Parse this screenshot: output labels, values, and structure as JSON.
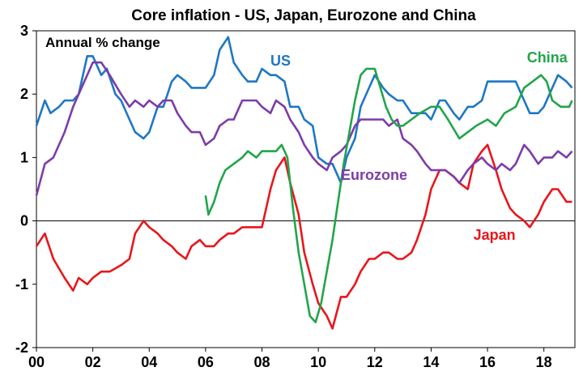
{
  "chart_data": {
    "type": "line",
    "title": "Core inflation - US, Japan, Eurozone and China",
    "annotation": "Annual % change",
    "xlabel": "",
    "ylabel": "",
    "xlim": [
      2000,
      2019.1
    ],
    "ylim": [
      -2,
      3
    ],
    "x_ticks": [
      2000,
      2002,
      2004,
      2006,
      2008,
      2010,
      2012,
      2014,
      2016,
      2018
    ],
    "x_tick_labels": [
      "00",
      "02",
      "04",
      "06",
      "08",
      "10",
      "12",
      "14",
      "16",
      "18"
    ],
    "y_ticks": [
      -2,
      -1,
      0,
      1,
      2,
      3
    ],
    "y_tick_labels": [
      "-2",
      "-1",
      "0",
      "1",
      "2",
      "3"
    ],
    "grid": false,
    "zero_line": true,
    "series": [
      {
        "name": "US",
        "color": "#1f77c4",
        "label": {
          "text": "US",
          "x": 2008.3,
          "y": 2.45
        },
        "points": [
          [
            2000,
            1.5
          ],
          [
            2000.3,
            1.9
          ],
          [
            2000.5,
            1.7
          ],
          [
            2000.8,
            1.8
          ],
          [
            2001,
            1.9
          ],
          [
            2001.3,
            1.9
          ],
          [
            2001.5,
            2.0
          ],
          [
            2001.8,
            2.6
          ],
          [
            2002,
            2.6
          ],
          [
            2002.3,
            2.3
          ],
          [
            2002.5,
            2.4
          ],
          [
            2002.8,
            2.0
          ],
          [
            2003,
            1.9
          ],
          [
            2003.3,
            1.6
          ],
          [
            2003.5,
            1.4
          ],
          [
            2003.8,
            1.3
          ],
          [
            2004,
            1.4
          ],
          [
            2004.3,
            1.8
          ],
          [
            2004.5,
            1.8
          ],
          [
            2004.8,
            2.2
          ],
          [
            2005,
            2.3
          ],
          [
            2005.3,
            2.2
          ],
          [
            2005.5,
            2.1
          ],
          [
            2005.8,
            2.1
          ],
          [
            2006,
            2.1
          ],
          [
            2006.3,
            2.3
          ],
          [
            2006.5,
            2.7
          ],
          [
            2006.8,
            2.9
          ],
          [
            2007,
            2.5
          ],
          [
            2007.3,
            2.3
          ],
          [
            2007.5,
            2.2
          ],
          [
            2007.8,
            2.2
          ],
          [
            2008,
            2.4
          ],
          [
            2008.3,
            2.3
          ],
          [
            2008.5,
            2.3
          ],
          [
            2008.8,
            2.2
          ],
          [
            2009,
            1.8
          ],
          [
            2009.3,
            1.8
          ],
          [
            2009.5,
            1.6
          ],
          [
            2009.8,
            1.5
          ],
          [
            2010,
            1.0
          ],
          [
            2010.3,
            0.9
          ],
          [
            2010.5,
            0.9
          ],
          [
            2010.8,
            0.6
          ],
          [
            2011,
            1.0
          ],
          [
            2011.3,
            1.3
          ],
          [
            2011.5,
            1.8
          ],
          [
            2011.8,
            2.1
          ],
          [
            2012,
            2.3
          ],
          [
            2012.3,
            2.1
          ],
          [
            2012.5,
            2.0
          ],
          [
            2012.8,
            1.9
          ],
          [
            2013,
            1.9
          ],
          [
            2013.3,
            1.7
          ],
          [
            2013.5,
            1.7
          ],
          [
            2013.8,
            1.7
          ],
          [
            2014,
            1.6
          ],
          [
            2014.3,
            1.9
          ],
          [
            2014.5,
            1.9
          ],
          [
            2014.8,
            1.7
          ],
          [
            2015,
            1.6
          ],
          [
            2015.3,
            1.8
          ],
          [
            2015.5,
            1.8
          ],
          [
            2015.8,
            1.9
          ],
          [
            2016,
            2.2
          ],
          [
            2016.3,
            2.2
          ],
          [
            2016.5,
            2.2
          ],
          [
            2016.8,
            2.2
          ],
          [
            2017,
            2.2
          ],
          [
            2017.3,
            1.9
          ],
          [
            2017.5,
            1.7
          ],
          [
            2017.8,
            1.7
          ],
          [
            2018,
            1.8
          ],
          [
            2018.3,
            2.1
          ],
          [
            2018.5,
            2.3
          ],
          [
            2018.8,
            2.2
          ],
          [
            2019,
            2.1
          ]
        ]
      },
      {
        "name": "Japan",
        "color": "#e8161b",
        "label": {
          "text": "Japan",
          "x": 2015.5,
          "y": -0.3
        },
        "points": [
          [
            2000,
            -0.4
          ],
          [
            2000.3,
            -0.2
          ],
          [
            2000.6,
            -0.6
          ],
          [
            2001,
            -0.9
          ],
          [
            2001.3,
            -1.1
          ],
          [
            2001.5,
            -0.9
          ],
          [
            2001.8,
            -1.0
          ],
          [
            2002,
            -0.9
          ],
          [
            2002.3,
            -0.8
          ],
          [
            2002.6,
            -0.8
          ],
          [
            2003,
            -0.7
          ],
          [
            2003.3,
            -0.6
          ],
          [
            2003.5,
            -0.2
          ],
          [
            2003.8,
            0.0
          ],
          [
            2004,
            -0.1
          ],
          [
            2004.3,
            -0.2
          ],
          [
            2004.5,
            -0.3
          ],
          [
            2004.8,
            -0.4
          ],
          [
            2005,
            -0.5
          ],
          [
            2005.3,
            -0.6
          ],
          [
            2005.5,
            -0.4
          ],
          [
            2005.8,
            -0.3
          ],
          [
            2006,
            -0.4
          ],
          [
            2006.3,
            -0.4
          ],
          [
            2006.5,
            -0.3
          ],
          [
            2006.8,
            -0.2
          ],
          [
            2007,
            -0.2
          ],
          [
            2007.3,
            -0.1
          ],
          [
            2007.5,
            -0.1
          ],
          [
            2007.8,
            -0.1
          ],
          [
            2008,
            -0.1
          ],
          [
            2008.3,
            0.5
          ],
          [
            2008.5,
            0.8
          ],
          [
            2008.8,
            1.0
          ],
          [
            2009,
            0.6
          ],
          [
            2009.3,
            0.1
          ],
          [
            2009.5,
            -0.5
          ],
          [
            2009.8,
            -1.0
          ],
          [
            2010,
            -1.3
          ],
          [
            2010.3,
            -1.5
          ],
          [
            2010.5,
            -1.7
          ],
          [
            2010.8,
            -1.2
          ],
          [
            2011,
            -1.2
          ],
          [
            2011.3,
            -1.0
          ],
          [
            2011.5,
            -0.8
          ],
          [
            2011.8,
            -0.6
          ],
          [
            2012,
            -0.6
          ],
          [
            2012.3,
            -0.5
          ],
          [
            2012.5,
            -0.5
          ],
          [
            2012.8,
            -0.6
          ],
          [
            2013,
            -0.6
          ],
          [
            2013.3,
            -0.5
          ],
          [
            2013.5,
            -0.3
          ],
          [
            2013.8,
            0.1
          ],
          [
            2014,
            0.5
          ],
          [
            2014.3,
            0.8
          ],
          [
            2014.5,
            0.8
          ],
          [
            2014.8,
            0.7
          ],
          [
            2015,
            0.6
          ],
          [
            2015.3,
            0.5
          ],
          [
            2015.5,
            0.9
          ],
          [
            2015.8,
            1.1
          ],
          [
            2016,
            1.2
          ],
          [
            2016.3,
            0.8
          ],
          [
            2016.5,
            0.5
          ],
          [
            2016.8,
            0.2
          ],
          [
            2017,
            0.1
          ],
          [
            2017.3,
            0.0
          ],
          [
            2017.5,
            -0.1
          ],
          [
            2017.8,
            0.1
          ],
          [
            2018,
            0.3
          ],
          [
            2018.3,
            0.5
          ],
          [
            2018.5,
            0.5
          ],
          [
            2018.8,
            0.3
          ],
          [
            2019,
            0.3
          ]
        ]
      },
      {
        "name": "Eurozone",
        "color": "#7d3ca8",
        "label": {
          "text": "Eurozone",
          "x": 2010.8,
          "y": 0.65
        },
        "points": [
          [
            2000,
            0.4
          ],
          [
            2000.3,
            0.9
          ],
          [
            2000.6,
            1.0
          ],
          [
            2001,
            1.4
          ],
          [
            2001.3,
            1.8
          ],
          [
            2001.5,
            2.0
          ],
          [
            2001.8,
            2.3
          ],
          [
            2002,
            2.5
          ],
          [
            2002.3,
            2.5
          ],
          [
            2002.6,
            2.3
          ],
          [
            2003,
            2.0
          ],
          [
            2003.3,
            1.8
          ],
          [
            2003.5,
            1.9
          ],
          [
            2003.8,
            1.8
          ],
          [
            2004,
            1.9
          ],
          [
            2004.3,
            1.8
          ],
          [
            2004.5,
            1.9
          ],
          [
            2004.8,
            1.9
          ],
          [
            2005,
            1.7
          ],
          [
            2005.3,
            1.5
          ],
          [
            2005.5,
            1.4
          ],
          [
            2005.8,
            1.4
          ],
          [
            2006,
            1.2
          ],
          [
            2006.3,
            1.3
          ],
          [
            2006.5,
            1.5
          ],
          [
            2006.8,
            1.6
          ],
          [
            2007,
            1.6
          ],
          [
            2007.3,
            1.9
          ],
          [
            2007.5,
            1.9
          ],
          [
            2007.8,
            1.9
          ],
          [
            2008,
            1.8
          ],
          [
            2008.3,
            1.7
          ],
          [
            2008.5,
            1.9
          ],
          [
            2008.8,
            1.8
          ],
          [
            2009,
            1.6
          ],
          [
            2009.3,
            1.4
          ],
          [
            2009.5,
            1.2
          ],
          [
            2009.8,
            1.0
          ],
          [
            2010,
            0.9
          ],
          [
            2010.3,
            0.8
          ],
          [
            2010.5,
            1.0
          ],
          [
            2010.8,
            1.1
          ],
          [
            2011,
            1.2
          ],
          [
            2011.3,
            1.5
          ],
          [
            2011.5,
            1.6
          ],
          [
            2011.8,
            1.6
          ],
          [
            2012,
            1.6
          ],
          [
            2012.3,
            1.6
          ],
          [
            2012.5,
            1.5
          ],
          [
            2012.8,
            1.6
          ],
          [
            2013,
            1.3
          ],
          [
            2013.3,
            1.2
          ],
          [
            2013.5,
            1.1
          ],
          [
            2013.8,
            0.9
          ],
          [
            2014,
            0.8
          ],
          [
            2014.3,
            0.8
          ],
          [
            2014.5,
            0.8
          ],
          [
            2014.8,
            0.7
          ],
          [
            2015,
            0.6
          ],
          [
            2015.3,
            0.8
          ],
          [
            2015.5,
            0.9
          ],
          [
            2015.8,
            1.0
          ],
          [
            2016,
            0.9
          ],
          [
            2016.3,
            0.8
          ],
          [
            2016.5,
            0.9
          ],
          [
            2016.8,
            0.8
          ],
          [
            2017,
            0.9
          ],
          [
            2017.3,
            1.2
          ],
          [
            2017.5,
            1.1
          ],
          [
            2017.8,
            0.9
          ],
          [
            2018,
            1.0
          ],
          [
            2018.3,
            1.0
          ],
          [
            2018.5,
            1.1
          ],
          [
            2018.8,
            1.0
          ],
          [
            2019,
            1.1
          ]
        ]
      },
      {
        "name": "China",
        "color": "#21a54a",
        "label": {
          "text": "China",
          "x": 2017.4,
          "y": 2.5
        },
        "points": [
          [
            2006,
            0.4
          ],
          [
            2006.1,
            0.1
          ],
          [
            2006.3,
            0.3
          ],
          [
            2006.5,
            0.6
          ],
          [
            2006.7,
            0.8
          ],
          [
            2007,
            0.9
          ],
          [
            2007.3,
            1.0
          ],
          [
            2007.5,
            1.1
          ],
          [
            2007.8,
            1.0
          ],
          [
            2008,
            1.1
          ],
          [
            2008.3,
            1.1
          ],
          [
            2008.5,
            1.1
          ],
          [
            2008.7,
            1.2
          ],
          [
            2008.9,
            1.0
          ],
          [
            2009.1,
            0.2
          ],
          [
            2009.3,
            -0.5
          ],
          [
            2009.5,
            -1.0
          ],
          [
            2009.7,
            -1.5
          ],
          [
            2009.9,
            -1.6
          ],
          [
            2010.1,
            -1.3
          ],
          [
            2010.3,
            -0.8
          ],
          [
            2010.5,
            -0.3
          ],
          [
            2010.7,
            0.3
          ],
          [
            2010.9,
            0.9
          ],
          [
            2011.1,
            1.4
          ],
          [
            2011.3,
            1.9
          ],
          [
            2011.5,
            2.3
          ],
          [
            2011.7,
            2.4
          ],
          [
            2012,
            2.4
          ],
          [
            2012.2,
            2.1
          ],
          [
            2012.4,
            1.8
          ],
          [
            2012.6,
            1.6
          ],
          [
            2012.8,
            1.5
          ],
          [
            2013,
            1.5
          ],
          [
            2013.3,
            1.6
          ],
          [
            2013.6,
            1.7
          ],
          [
            2014,
            1.8
          ],
          [
            2014.3,
            1.8
          ],
          [
            2014.6,
            1.6
          ],
          [
            2015,
            1.3
          ],
          [
            2015.3,
            1.4
          ],
          [
            2015.6,
            1.5
          ],
          [
            2016,
            1.6
          ],
          [
            2016.3,
            1.5
          ],
          [
            2016.6,
            1.7
          ],
          [
            2017,
            1.8
          ],
          [
            2017.3,
            2.1
          ],
          [
            2017.6,
            2.2
          ],
          [
            2017.9,
            2.3
          ],
          [
            2018.1,
            2.2
          ],
          [
            2018.3,
            1.9
          ],
          [
            2018.6,
            1.8
          ],
          [
            2018.9,
            1.8
          ],
          [
            2019,
            1.9
          ]
        ]
      }
    ]
  }
}
